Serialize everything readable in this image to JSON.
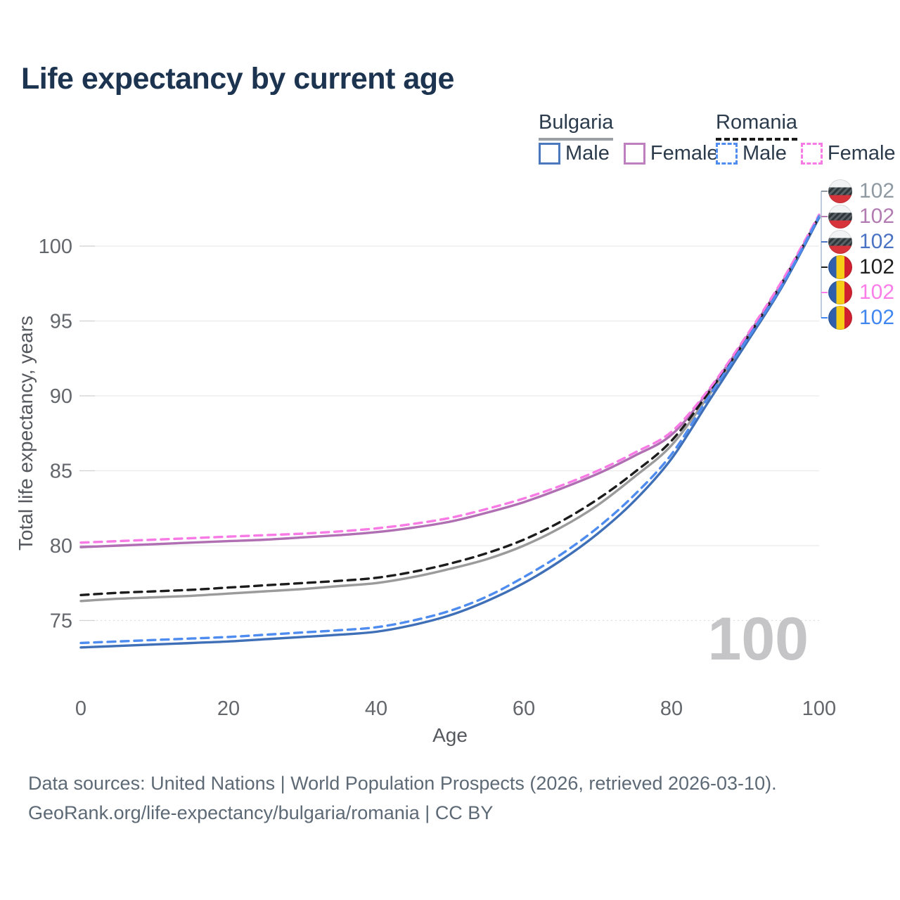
{
  "title": "Life expectancy by current age",
  "legend": {
    "groups": [
      {
        "name": "Bulgaria",
        "line_style": "solid",
        "line_color": "#9aa0a6",
        "entries": [
          {
            "label": "Male",
            "color": "#4b77bc"
          },
          {
            "label": "Female",
            "color": "#bd7fbd"
          }
        ]
      },
      {
        "name": "Romania",
        "line_style": "dashed",
        "line_color": "#1b1b1b",
        "entries": [
          {
            "label": "Male",
            "color": "#4f8cf0"
          },
          {
            "label": "Female",
            "color": "#f87ae5"
          }
        ]
      }
    ]
  },
  "right_legend": {
    "items": [
      {
        "flag": "bulgaria",
        "value": "102",
        "color": "#8e99a2"
      },
      {
        "flag": "bulgaria",
        "value": "102",
        "color": "#b27cb2"
      },
      {
        "flag": "bulgaria",
        "value": "102",
        "color": "#4a73c4"
      },
      {
        "flag": "romania",
        "value": "102",
        "color": "#1f1f1f"
      },
      {
        "flag": "romania",
        "value": "102",
        "color": "#fb7ee8"
      },
      {
        "flag": "romania",
        "value": "102",
        "color": "#4287f0"
      }
    ]
  },
  "watermark": "100",
  "chart_data": {
    "type": "line",
    "title": "Life expectancy by current age",
    "xlabel": "Age",
    "ylabel": "Total life expectancy, years",
    "x_ticks": [
      0,
      20,
      40,
      60,
      80,
      100
    ],
    "y_ticks": [
      75,
      80,
      85,
      90,
      95,
      100
    ],
    "xlim": [
      0,
      100
    ],
    "ylim": [
      72.5,
      102.5
    ],
    "grid": "horizontal",
    "legend_position": "top-right",
    "x": [
      0,
      5,
      10,
      15,
      20,
      25,
      30,
      35,
      40,
      45,
      50,
      55,
      60,
      65,
      70,
      75,
      80,
      85,
      90,
      95,
      100
    ],
    "series": [
      {
        "name": "Bulgaria Total",
        "country": "Bulgaria",
        "sex": "total",
        "style": "solid",
        "color": "#9b9b9b",
        "values": [
          76.3,
          76.45,
          76.55,
          76.65,
          76.8,
          76.95,
          77.1,
          77.3,
          77.5,
          77.9,
          78.45,
          79.1,
          80.0,
          81.2,
          82.7,
          84.6,
          86.7,
          90.0,
          93.6,
          97.5,
          101.9
        ],
        "end_label": "102"
      },
      {
        "name": "Bulgaria Female",
        "country": "Bulgaria",
        "sex": "female",
        "style": "solid",
        "color": "#b06fb2",
        "values": [
          79.9,
          80.0,
          80.1,
          80.2,
          80.3,
          80.4,
          80.55,
          80.7,
          80.9,
          81.2,
          81.6,
          82.2,
          82.9,
          83.8,
          84.8,
          86.0,
          87.4,
          90.3,
          93.8,
          97.6,
          102.0
        ],
        "end_label": "102"
      },
      {
        "name": "Bulgaria Male",
        "country": "Bulgaria",
        "sex": "male",
        "style": "solid",
        "color": "#3e6fb7",
        "values": [
          73.2,
          73.3,
          73.4,
          73.5,
          73.6,
          73.75,
          73.9,
          74.05,
          74.25,
          74.7,
          75.35,
          76.3,
          77.5,
          79.0,
          80.8,
          83.0,
          85.8,
          89.6,
          93.4,
          97.3,
          101.9
        ],
        "end_label": "102"
      },
      {
        "name": "Romania Total",
        "country": "Romania",
        "sex": "total",
        "style": "dashed",
        "color": "#1c1c1c",
        "values": [
          76.7,
          76.85,
          76.95,
          77.05,
          77.2,
          77.35,
          77.5,
          77.65,
          77.85,
          78.25,
          78.8,
          79.5,
          80.4,
          81.6,
          83.1,
          84.9,
          87.0,
          90.2,
          93.7,
          97.6,
          102.0
        ],
        "end_label": "102"
      },
      {
        "name": "Romania Female",
        "country": "Romania",
        "sex": "female",
        "style": "dashed",
        "color": "#f87ae5",
        "values": [
          80.2,
          80.3,
          80.4,
          80.5,
          80.6,
          80.7,
          80.8,
          80.95,
          81.15,
          81.45,
          81.85,
          82.45,
          83.15,
          84.0,
          85.0,
          86.2,
          87.6,
          90.4,
          93.9,
          97.7,
          102.1
        ],
        "end_label": "102"
      },
      {
        "name": "Romania Male",
        "country": "Romania",
        "sex": "male",
        "style": "dashed",
        "color": "#4f8cf0",
        "values": [
          73.5,
          73.6,
          73.7,
          73.8,
          73.9,
          74.05,
          74.2,
          74.35,
          74.55,
          75.0,
          75.65,
          76.6,
          77.9,
          79.4,
          81.2,
          83.4,
          86.1,
          89.9,
          93.6,
          97.4,
          102.0
        ],
        "end_label": "102"
      }
    ]
  },
  "footer": {
    "line1": "Data sources: United Nations | World Population Prospects (2026, retrieved 2026-03-10).",
    "line2": "GeoRank.org/life-expectancy/bulgaria/romania | CC BY"
  }
}
